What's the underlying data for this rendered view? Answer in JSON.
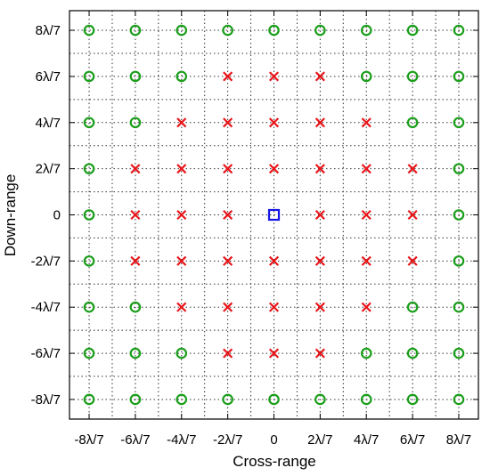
{
  "chart_data": {
    "type": "scatter",
    "title": "",
    "xlabel": "Cross-range",
    "ylabel": "Down-range",
    "xlim": [
      -8.85,
      8.85
    ],
    "ylim": [
      -8.85,
      8.85
    ],
    "grid": true,
    "grid_style": "dotted",
    "x_ticks": [
      -8,
      -6,
      -4,
      -2,
      0,
      2,
      4,
      6,
      8
    ],
    "x_tick_labels": [
      "-8λ/7",
      "-6λ/7",
      "-4λ/7",
      "-2λ/7",
      "0",
      "2λ/7",
      "4λ/7",
      "6λ/7",
      "8λ/7"
    ],
    "y_ticks": [
      -8,
      -6,
      -4,
      -2,
      0,
      2,
      4,
      6,
      8
    ],
    "y_tick_labels": [
      "-8λ/7",
      "-6λ/7",
      "-4λ/7",
      "-2λ/7",
      "0",
      "2λ/7",
      "4λ/7",
      "6λ/7",
      "8λ/7"
    ],
    "series": [
      {
        "marker": "circle",
        "color": "#1a9e1a",
        "points": [
          [
            -8,
            8
          ],
          [
            -6,
            8
          ],
          [
            -4,
            8
          ],
          [
            -2,
            8
          ],
          [
            0,
            8
          ],
          [
            2,
            8
          ],
          [
            4,
            8
          ],
          [
            6,
            8
          ],
          [
            8,
            8
          ],
          [
            -8,
            6
          ],
          [
            -6,
            6
          ],
          [
            -4,
            6
          ],
          [
            4,
            6
          ],
          [
            6,
            6
          ],
          [
            8,
            6
          ],
          [
            -8,
            4
          ],
          [
            -6,
            4
          ],
          [
            6,
            4
          ],
          [
            8,
            4
          ],
          [
            -8,
            2
          ],
          [
            8,
            2
          ],
          [
            -8,
            0
          ],
          [
            8,
            0
          ],
          [
            -8,
            -2
          ],
          [
            8,
            -2
          ],
          [
            -8,
            -4
          ],
          [
            -6,
            -4
          ],
          [
            6,
            -4
          ],
          [
            8,
            -4
          ],
          [
            -8,
            -6
          ],
          [
            -6,
            -6
          ],
          [
            -4,
            -6
          ],
          [
            4,
            -6
          ],
          [
            6,
            -6
          ],
          [
            8,
            -6
          ],
          [
            -8,
            -8
          ],
          [
            -6,
            -8
          ],
          [
            -4,
            -8
          ],
          [
            -2,
            -8
          ],
          [
            0,
            -8
          ],
          [
            2,
            -8
          ],
          [
            4,
            -8
          ],
          [
            6,
            -8
          ],
          [
            8,
            -8
          ]
        ]
      },
      {
        "marker": "x",
        "color": "#e8161b",
        "points": [
          [
            -2,
            6
          ],
          [
            0,
            6
          ],
          [
            2,
            6
          ],
          [
            -4,
            4
          ],
          [
            -2,
            4
          ],
          [
            0,
            4
          ],
          [
            2,
            4
          ],
          [
            4,
            4
          ],
          [
            -6,
            2
          ],
          [
            -4,
            2
          ],
          [
            -2,
            2
          ],
          [
            0,
            2
          ],
          [
            2,
            2
          ],
          [
            4,
            2
          ],
          [
            6,
            2
          ],
          [
            -6,
            0
          ],
          [
            -4,
            0
          ],
          [
            -2,
            0
          ],
          [
            2,
            0
          ],
          [
            4,
            0
          ],
          [
            6,
            0
          ],
          [
            -6,
            -2
          ],
          [
            -4,
            -2
          ],
          [
            -2,
            -2
          ],
          [
            0,
            -2
          ],
          [
            2,
            -2
          ],
          [
            4,
            -2
          ],
          [
            6,
            -2
          ],
          [
            -4,
            -4
          ],
          [
            -2,
            -4
          ],
          [
            0,
            -4
          ],
          [
            2,
            -4
          ],
          [
            4,
            -4
          ],
          [
            -2,
            -6
          ],
          [
            0,
            -6
          ],
          [
            2,
            -6
          ]
        ]
      },
      {
        "marker": "square",
        "color": "#1515e6",
        "points": [
          [
            0,
            0
          ]
        ]
      }
    ]
  }
}
